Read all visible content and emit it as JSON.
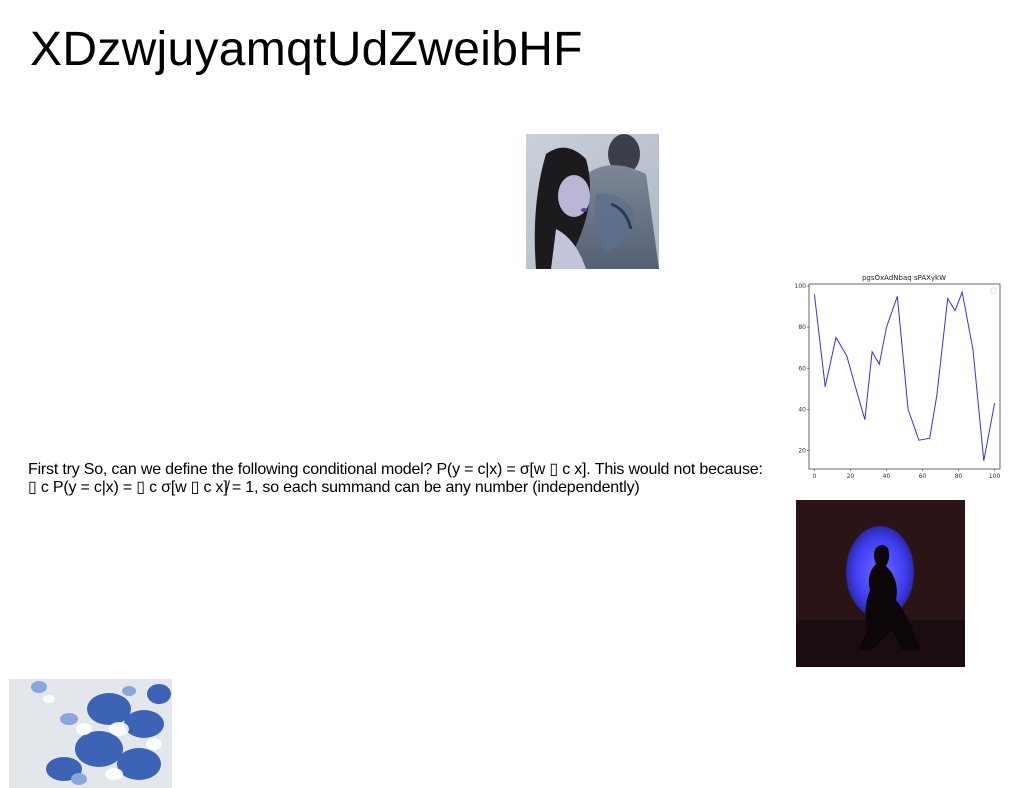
{
  "page": {
    "title": "XDzwjuyamqtUdZweibHF",
    "paragraph": "First try So, can we define the following conditional model? P(y = c|x) = σ[w ▯ c x]. This would not because: ▯ c P(y = c|x) = ▯ c σ[w ▯ c x]̸ = 1, so each summand can be any number (independently)"
  },
  "images": {
    "couple": "photo of a woman leaning against a tattooed man, blue tones",
    "silhouette": "photo of a seated silhouetted woman before a blue circular light",
    "shells": "photo of blue and white seashells on a light background"
  },
  "chart_data": {
    "type": "line",
    "title": "pgsOxAdNbaq sPAXykW",
    "xlabel": "",
    "ylabel": "",
    "xlim": [
      -3,
      103
    ],
    "ylim": [
      11,
      101
    ],
    "xticks": [
      0,
      20,
      40,
      60,
      80,
      100
    ],
    "yticks": [
      20,
      40,
      60,
      80,
      100
    ],
    "grid": false,
    "legend": "top-right",
    "series": [
      {
        "color": "#3333dd",
        "x": [
          0,
          6,
          12,
          18,
          24,
          28,
          32,
          36,
          40,
          46,
          52,
          58,
          64,
          68,
          74,
          78,
          82,
          88,
          94,
          100
        ],
        "y": [
          96,
          51,
          75,
          66,
          47,
          35,
          68,
          62,
          80,
          95,
          40,
          25,
          26,
          47,
          94,
          88,
          97,
          69,
          15,
          43
        ]
      }
    ]
  }
}
